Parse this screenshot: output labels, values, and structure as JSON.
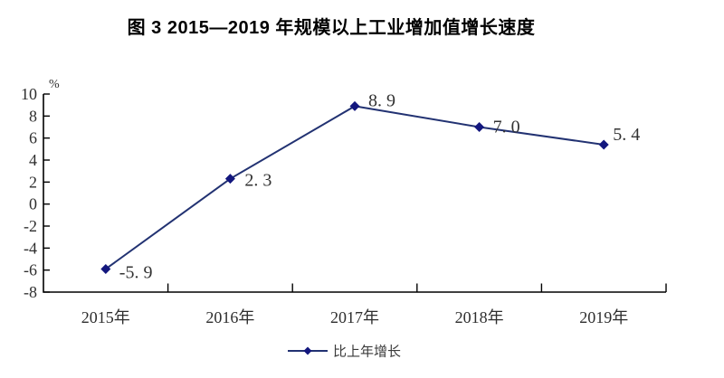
{
  "title": "图 3  2015—2019 年规模以上工业增加值增长速度",
  "unit_label": "%",
  "legend": {
    "label": "比上年增长"
  },
  "chart_data": {
    "type": "line",
    "title": "图 3  2015—2019 年规模以上工业增加值增长速度",
    "categories": [
      "2015年",
      "2016年",
      "2017年",
      "2018年",
      "2019年"
    ],
    "series": [
      {
        "name": "比上年增长",
        "values": [
          -5.9,
          2.3,
          8.9,
          7.0,
          5.4
        ],
        "point_labels": [
          "-5. 9",
          "2. 3",
          "8. 9",
          "7. 0",
          "5. 4"
        ]
      }
    ],
    "xlabel": "",
    "ylabel": "%",
    "ylim": [
      -8,
      10
    ],
    "ytick_step": 2,
    "ytick_labels": [
      "10",
      "8",
      "6",
      "4",
      "2",
      "0",
      "-2",
      "-4",
      "-6",
      "-8"
    ],
    "grid": false,
    "legend_position": "bottom",
    "marker": "diamond",
    "colors": {
      "line": "#223272",
      "marker": "#13177e",
      "axis": "#000000",
      "tick_text": "#2e2e2e",
      "data_label_text": "#333333",
      "legend_text": "#3a3a3a"
    }
  }
}
